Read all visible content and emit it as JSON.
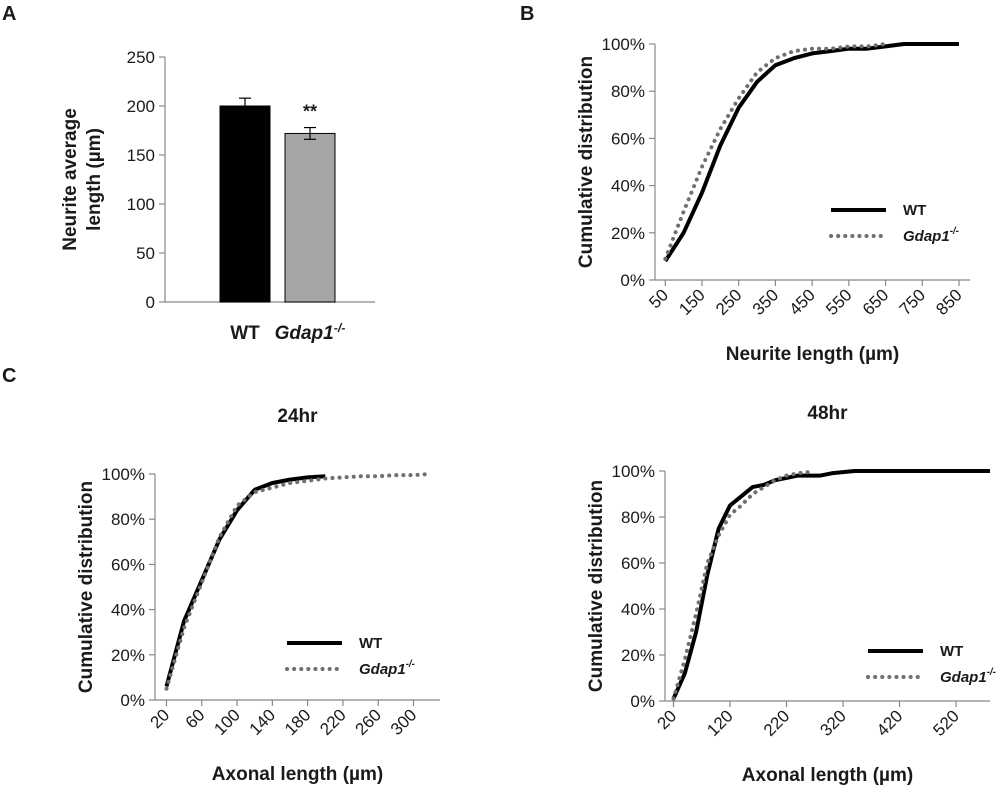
{
  "figure": {
    "panels": [
      "A",
      "B",
      "C"
    ]
  },
  "chart_data": [
    {
      "id": "A",
      "type": "bar",
      "title": "",
      "ylabel": "Neurite average length (µm)",
      "ylabel_lines": [
        "Neurite average",
        "length (µm)"
      ],
      "xlabel": "",
      "ylim": [
        0,
        250
      ],
      "yticks": [
        0,
        50,
        100,
        150,
        200,
        250
      ],
      "categories": [
        "WT",
        "Gdap1"
      ],
      "category_superscripts": [
        "",
        "-/-"
      ],
      "values": [
        200,
        172
      ],
      "errors": [
        8,
        6
      ],
      "colors": [
        "#000000",
        "#a6a6a6"
      ],
      "annotations": [
        {
          "category": "Gdap1",
          "text": "**"
        }
      ],
      "grid": false
    },
    {
      "id": "B",
      "type": "line",
      "title": "",
      "xlabel": "Neurite length (µm)",
      "ylabel": "Cumulative distribution",
      "xticks": [
        50,
        150,
        250,
        350,
        450,
        550,
        650,
        750,
        850
      ],
      "yticks": [
        0,
        20,
        40,
        60,
        80,
        100
      ],
      "yticks_labels": [
        "0%",
        "20%",
        "40%",
        "60%",
        "80%",
        "100%"
      ],
      "ylim": [
        0,
        100
      ],
      "legend": "center-right",
      "grid": false,
      "series": [
        {
          "name": "WT",
          "name_superscript": "",
          "style": "solid",
          "color": "#000000",
          "x": [
            50,
            100,
            150,
            200,
            250,
            300,
            350,
            400,
            450,
            500,
            550,
            600,
            650,
            700,
            750,
            800,
            850
          ],
          "y": [
            8,
            20,
            37,
            57,
            73,
            84,
            91,
            94,
            96,
            97,
            98,
            98,
            99,
            100,
            100,
            100,
            100
          ]
        },
        {
          "name": "Gdap1",
          "name_superscript": "-/-",
          "style": "dotted",
          "color": "#6f6f6f",
          "x": [
            50,
            100,
            150,
            200,
            250,
            300,
            350,
            400,
            450,
            500,
            550,
            600,
            650
          ],
          "y": [
            9,
            29,
            48,
            64,
            77,
            88,
            94,
            97,
            98,
            98,
            99,
            99,
            100
          ]
        }
      ]
    },
    {
      "id": "C-24hr",
      "type": "line",
      "title": "24hr",
      "xlabel": "Axonal length (µm)",
      "ylabel": "Cumulative distribution",
      "xticks": [
        20,
        60,
        100,
        140,
        180,
        220,
        260,
        300
      ],
      "yticks": [
        0,
        20,
        40,
        60,
        80,
        100
      ],
      "yticks_labels": [
        "0%",
        "20%",
        "40%",
        "60%",
        "80%",
        "100%"
      ],
      "ylim": [
        0,
        100
      ],
      "legend": "bottom-right",
      "grid": false,
      "series": [
        {
          "name": "WT",
          "name_superscript": "",
          "style": "solid",
          "color": "#000000",
          "x": [
            20,
            40,
            60,
            80,
            100,
            120,
            140,
            160,
            180,
            200
          ],
          "y": [
            6,
            35,
            53,
            71,
            84,
            93,
            96,
            97.5,
            98.5,
            99
          ]
        },
        {
          "name": "Gdap1",
          "name_superscript": "-/-",
          "style": "dotted",
          "color": "#6f6f6f",
          "x": [
            20,
            40,
            60,
            80,
            100,
            120,
            140,
            160,
            180,
            200,
            220,
            240,
            260,
            280,
            300,
            320
          ],
          "y": [
            5,
            32,
            52,
            72,
            86,
            92,
            94,
            96,
            97,
            98,
            98.5,
            99,
            99,
            99.5,
            99.5,
            100
          ]
        }
      ]
    },
    {
      "id": "C-48hr",
      "type": "line",
      "title": "48hr",
      "xlabel": "Axonal length (µm)",
      "ylabel": "Cumulative distribution",
      "xticks": [
        20,
        120,
        220,
        320,
        420,
        520
      ],
      "yticks": [
        0,
        20,
        40,
        60,
        80,
        100
      ],
      "yticks_labels": [
        "0%",
        "20%",
        "40%",
        "60%",
        "80%",
        "100%"
      ],
      "ylim": [
        0,
        100
      ],
      "legend": "bottom-right",
      "grid": false,
      "series": [
        {
          "name": "WT",
          "name_superscript": "",
          "style": "solid",
          "color": "#000000",
          "x": [
            20,
            40,
            60,
            80,
            100,
            120,
            140,
            160,
            180,
            200,
            220,
            240,
            260,
            280,
            300,
            320,
            340,
            360,
            380,
            400,
            420,
            440,
            460,
            480,
            500,
            520,
            540,
            560,
            580
          ],
          "y": [
            1,
            12,
            30,
            55,
            75,
            85,
            89,
            93,
            94,
            96,
            97,
            98,
            98,
            98,
            99,
            99.5,
            100,
            100,
            100,
            100,
            100,
            100,
            100,
            100,
            100,
            100,
            100,
            100,
            100
          ]
        },
        {
          "name": "Gdap1",
          "name_superscript": "-/-",
          "style": "dotted",
          "color": "#6f6f6f",
          "x": [
            20,
            40,
            60,
            80,
            100,
            120,
            140,
            160,
            180,
            200,
            220,
            240,
            260
          ],
          "y": [
            1,
            18,
            38,
            60,
            72,
            81,
            85,
            90,
            93,
            96,
            98,
            99,
            99.5
          ]
        }
      ]
    }
  ]
}
